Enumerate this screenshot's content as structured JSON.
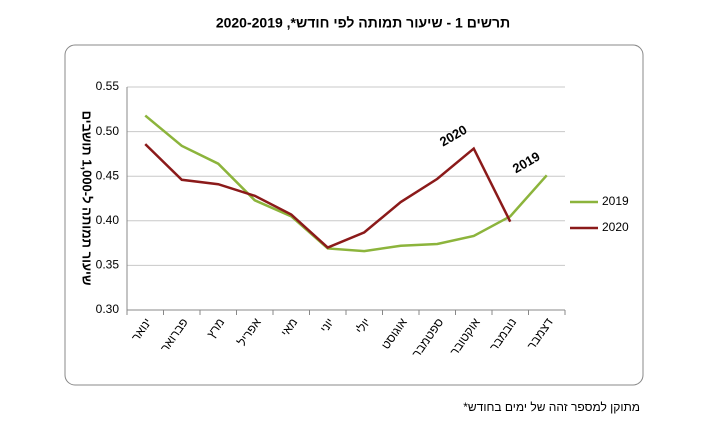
{
  "chart_data": {
    "type": "line",
    "title": "תרשים 1 - שיעור תמותה לפי חודש*, 2020-2019",
    "y_label": "שיעור תמותה ל-1,000 תושבים",
    "footnote": "*מתוקן למספר זהה של ימים בחודש",
    "categories": [
      "ינואר",
      "פברואר",
      "מרץ",
      "אפריל",
      "מאי",
      "יוני",
      "יולי",
      "אוגוסט",
      "ספטמבר",
      "אוקטובר",
      "נובמבר",
      "דצמבר"
    ],
    "series": [
      {
        "name": "2019",
        "color": "#8cb43c",
        "values": [
          0.518,
          0.484,
          0.464,
          0.423,
          0.405,
          0.369,
          0.366,
          0.372,
          0.374,
          0.383,
          0.405,
          0.451
        ]
      },
      {
        "name": "2020",
        "color": "#8b1a1a",
        "values": [
          0.486,
          0.446,
          0.441,
          0.428,
          0.407,
          0.37,
          0.387,
          0.421,
          0.447,
          0.481,
          0.399,
          null
        ]
      }
    ],
    "annotations": [
      {
        "text": "2020",
        "category": 9,
        "series": 1
      },
      {
        "text": "2019",
        "category": 11,
        "series": 0
      }
    ],
    "ylim": [
      0.3,
      0.55
    ],
    "yticks": [
      {
        "value": 0.3,
        "label": "0.30"
      },
      0.35,
      {
        "value": 0.4,
        "label": "0.40"
      },
      0.45,
      {
        "value": 0.5,
        "label": "0.50"
      },
      0.55
    ],
    "grid": true,
    "legend": "right"
  }
}
